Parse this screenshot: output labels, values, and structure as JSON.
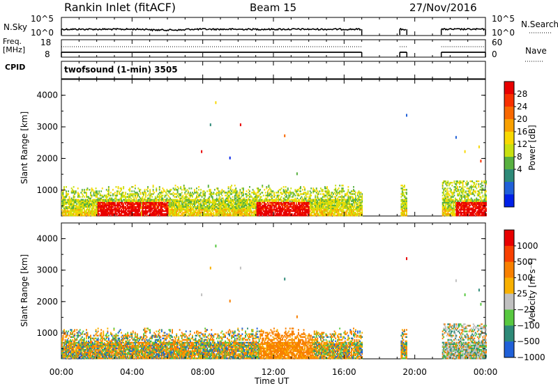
{
  "header": {
    "station": "Rankin Inlet (fitACF)",
    "beam": "Beam 15",
    "date": "27/Nov/2016"
  },
  "strips": {
    "nsky_label": "N.Sky",
    "nsky_ticks": [
      "10^5",
      "10^0"
    ],
    "nsearch_label": "N.Search",
    "nsearch_ticks": [
      "10^5",
      "10^0"
    ],
    "freq_label": "Freq.",
    "freq_unit": "[MHz]",
    "freq_ticks": [
      "18",
      "8"
    ],
    "nave_label": "Nave",
    "nave_ticks": [
      "60",
      "0"
    ],
    "cpid_label": "CPID",
    "cpid_value": "twofsound (1-min) 3505"
  },
  "colorbars": {
    "power": {
      "label": "Power [dB]",
      "ticks": [
        "28",
        "24",
        "20",
        "16",
        "12",
        "8",
        "4"
      ],
      "colors": [
        "#0020e8",
        "#2060d8",
        "#2e8a78",
        "#58b040",
        "#c8e010",
        "#f8d800",
        "#f8a000",
        "#f86800",
        "#f83000",
        "#e80000"
      ]
    },
    "velocity": {
      "label": "Velocity [m s⁻¹]",
      "ticks": [
        "1000",
        "500",
        "100",
        "25",
        "−25",
        "−100",
        "−500",
        "−1000"
      ],
      "colors": [
        "#2060d8",
        "#2e8a78",
        "#58c840",
        "#c0c0c0",
        "#f8b000",
        "#f88000",
        "#f84000",
        "#e80000"
      ]
    }
  },
  "chart_data": [
    {
      "type": "line",
      "title": "Rankin Inlet (fitACF)  Beam 15  27/Nov/2016",
      "panel": "N.Sky / N.Search",
      "x": [
        "00:00",
        "17:00",
        "19:10",
        "19:35",
        "21:30",
        "24:00"
      ],
      "y_scale": "log",
      "ylim": [
        "10^0",
        "10^5"
      ],
      "data_gaps": [
        [
          "17:00",
          "19:10"
        ],
        [
          "19:35",
          "21:30"
        ]
      ]
    },
    {
      "type": "line",
      "panel": "Freq. [MHz] / Nave",
      "ylim_left": [
        8,
        18
      ],
      "ylim_right": [
        0,
        60
      ],
      "x": [
        "00:00",
        "17:00",
        "19:10",
        "19:35",
        "21:30",
        "24:00"
      ],
      "data_gaps": [
        [
          "17:00",
          "19:10"
        ],
        [
          "19:35",
          "21:30"
        ]
      ]
    },
    {
      "type": "heatmap",
      "panel": "power",
      "xlabel": "Time UT",
      "ylabel": "Slant Range [km]",
      "xticks": [
        "00:00",
        "04:00",
        "08:00",
        "12:00",
        "16:00",
        "20:00",
        "00:00"
      ],
      "yticks": [
        1000,
        2000,
        3000,
        4000
      ],
      "ylim": [
        180,
        4500
      ],
      "colorbar": "Power [dB]",
      "data_gaps": [
        [
          "17:00",
          "19:10"
        ],
        [
          "19:35",
          "21:30"
        ]
      ]
    },
    {
      "type": "heatmap",
      "panel": "velocity",
      "xlabel": "Time UT",
      "ylabel": "Slant Range [km]",
      "xticks": [
        "00:00",
        "04:00",
        "08:00",
        "12:00",
        "16:00",
        "20:00",
        "00:00"
      ],
      "yticks": [
        1000,
        2000,
        3000,
        4000
      ],
      "ylim": [
        180,
        4500
      ],
      "colorbar": "Velocity [m s⁻¹]",
      "data_gaps": [
        [
          "17:00",
          "19:10"
        ],
        [
          "19:35",
          "21:30"
        ]
      ]
    }
  ],
  "axis": {
    "xlabel": "Time UT",
    "ylabel": "Slant Range [km]",
    "xticks": [
      "00:00",
      "04:00",
      "08:00",
      "12:00",
      "16:00",
      "20:00",
      "00:00"
    ],
    "yticks": [
      "1000",
      "2000",
      "3000",
      "4000"
    ]
  }
}
